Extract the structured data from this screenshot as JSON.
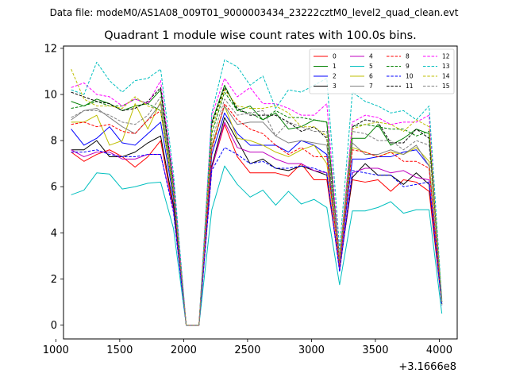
{
  "suptitle": "Data file: modeM0/AS1A08_009T01_9000003434_23222cztM0_level2_quad_clean.evt",
  "chart_data": {
    "type": "line",
    "title": "Quadrant 1 module wise count rates with 100.0s bins.",
    "offset_label": "+3.1666e8",
    "xlim": [
      1060,
      4140
    ],
    "ylim": [
      -0.6,
      12.1
    ],
    "xticks": [
      1000,
      1500,
      2000,
      2500,
      3000,
      3500,
      4000
    ],
    "yticks": [
      0,
      2,
      4,
      6,
      8,
      10,
      12
    ],
    "x": [
      1120,
      1220,
      1320,
      1420,
      1520,
      1620,
      1720,
      1820,
      1920,
      2020,
      2120,
      2220,
      2320,
      2420,
      2520,
      2620,
      2720,
      2820,
      2920,
      3020,
      3120,
      3220,
      3320,
      3420,
      3520,
      3620,
      3720,
      3820,
      3920,
      4020
    ],
    "legend_position": "upper right",
    "series": [
      {
        "name": "0",
        "color": "#ff0000",
        "dash": "solid",
        "values": [
          7.5,
          7.1,
          7.4,
          7.6,
          7.3,
          6.85,
          7.3,
          8.0,
          5.0,
          0.0,
          0.0,
          6.8,
          8.7,
          7.3,
          6.6,
          6.6,
          6.6,
          6.45,
          7.0,
          6.3,
          6.3,
          2.5,
          6.3,
          6.2,
          6.3,
          5.8,
          6.3,
          6.2,
          5.8,
          0.9
        ]
      },
      {
        "name": "1",
        "color": "#008000",
        "dash": "solid",
        "values": [
          9.7,
          9.5,
          9.8,
          9.6,
          9.3,
          9.5,
          9.6,
          10.2,
          6.0,
          0.0,
          0.0,
          8.8,
          10.4,
          9.3,
          9.5,
          8.9,
          9.2,
          8.5,
          8.6,
          8.9,
          8.8,
          2.9,
          8.1,
          8.1,
          8.7,
          7.8,
          8.1,
          8.5,
          8.3,
          1.0
        ]
      },
      {
        "name": "2",
        "color": "#0000ff",
        "dash": "solid",
        "values": [
          8.5,
          7.8,
          8.1,
          8.6,
          7.9,
          7.8,
          8.3,
          8.8,
          5.5,
          0.0,
          0.0,
          7.4,
          9.2,
          8.3,
          7.8,
          7.8,
          7.8,
          7.5,
          8.0,
          7.8,
          7.4,
          2.6,
          7.2,
          7.2,
          7.3,
          7.3,
          7.5,
          7.6,
          6.9,
          0.9
        ]
      },
      {
        "name": "3",
        "color": "#000000",
        "dash": "solid",
        "values": [
          7.6,
          7.6,
          8.0,
          7.3,
          7.3,
          7.5,
          7.9,
          8.2,
          5.2,
          0.0,
          0.0,
          6.9,
          9.0,
          8.0,
          7.0,
          7.2,
          6.8,
          6.7,
          6.9,
          6.7,
          6.5,
          2.4,
          6.4,
          7.0,
          6.5,
          6.5,
          6.1,
          6.6,
          6.1,
          0.9
        ]
      },
      {
        "name": "4",
        "color": "#bf00bf",
        "dash": "solid",
        "values": [
          7.6,
          7.3,
          7.5,
          7.5,
          7.2,
          7.2,
          7.4,
          7.4,
          5.0,
          0.0,
          0.0,
          6.8,
          8.8,
          7.7,
          7.5,
          7.5,
          7.2,
          7.0,
          7.0,
          6.7,
          6.6,
          2.4,
          6.6,
          6.8,
          6.8,
          6.6,
          6.7,
          6.4,
          6.3,
          0.9
        ]
      },
      {
        "name": "5",
        "color": "#00bfbf",
        "dash": "solid",
        "values": [
          5.65,
          5.85,
          6.6,
          6.55,
          5.9,
          6.0,
          6.15,
          6.2,
          4.2,
          0.0,
          0.0,
          5.0,
          6.9,
          6.1,
          5.55,
          5.85,
          5.2,
          5.8,
          5.25,
          5.45,
          5.1,
          1.75,
          4.95,
          4.95,
          5.1,
          5.35,
          4.85,
          5.0,
          5.0,
          0.5
        ]
      },
      {
        "name": "6",
        "color": "#bfbf00",
        "dash": "solid",
        "values": [
          8.8,
          8.8,
          9.1,
          7.8,
          8.0,
          9.6,
          8.5,
          9.7,
          5.8,
          0.0,
          0.0,
          7.8,
          9.5,
          8.1,
          8.0,
          7.8,
          7.5,
          7.3,
          7.6,
          7.8,
          7.0,
          2.7,
          7.7,
          7.5,
          7.3,
          7.5,
          7.4,
          7.7,
          7.1,
          0.9
        ]
      },
      {
        "name": "7",
        "color": "#808080",
        "dash": "solid",
        "values": [
          8.9,
          9.3,
          9.4,
          9.0,
          8.6,
          8.3,
          8.9,
          9.6,
          5.8,
          0.0,
          0.0,
          7.7,
          9.5,
          8.7,
          8.8,
          8.8,
          8.2,
          7.9,
          8.0,
          7.9,
          7.8,
          2.6,
          7.9,
          7.4,
          7.4,
          7.6,
          7.4,
          7.8,
          6.9,
          1.0
        ]
      },
      {
        "name": "8",
        "color": "#ff0000",
        "dash": "dashed",
        "values": [
          8.7,
          8.8,
          8.6,
          8.7,
          8.4,
          8.3,
          8.9,
          9.3,
          5.7,
          0.0,
          0.0,
          7.6,
          9.6,
          8.9,
          8.5,
          8.3,
          7.8,
          7.4,
          7.7,
          7.3,
          7.3,
          2.6,
          7.6,
          7.5,
          7.3,
          7.5,
          7.1,
          7.1,
          6.8,
          1.0
        ]
      },
      {
        "name": "9",
        "color": "#008000",
        "dash": "dashed",
        "values": [
          9.4,
          9.5,
          9.7,
          9.5,
          9.5,
          9.8,
          9.6,
          9.3,
          5.7,
          0.0,
          0.0,
          8.3,
          10.1,
          9.3,
          9.2,
          8.9,
          9.3,
          9.0,
          9.0,
          8.9,
          8.8,
          2.8,
          8.6,
          8.7,
          8.6,
          8.5,
          8.5,
          8.2,
          8.4,
          1.0
        ]
      },
      {
        "name": "10",
        "color": "#0000ff",
        "dash": "dashed",
        "values": [
          7.5,
          7.5,
          7.6,
          7.4,
          7.3,
          7.3,
          7.4,
          7.4,
          4.9,
          0.0,
          0.0,
          6.7,
          7.7,
          7.4,
          7.0,
          7.1,
          6.8,
          6.8,
          6.9,
          6.8,
          6.6,
          2.3,
          6.7,
          6.6,
          6.5,
          6.5,
          6.0,
          6.1,
          6.2,
          0.85
        ]
      },
      {
        "name": "11",
        "color": "#000000",
        "dash": "dashed",
        "values": [
          10.1,
          9.9,
          9.7,
          9.6,
          9.3,
          9.4,
          9.7,
          10.3,
          6.2,
          0.0,
          0.0,
          8.7,
          10.3,
          9.4,
          9.1,
          9.1,
          9.1,
          8.8,
          8.4,
          8.6,
          8.1,
          2.9,
          8.6,
          8.9,
          8.8,
          7.9,
          7.9,
          8.5,
          8.1,
          1.0
        ]
      },
      {
        "name": "12",
        "color": "#ff00ff",
        "dash": "dashed",
        "values": [
          10.3,
          10.5,
          10.0,
          9.9,
          9.5,
          9.8,
          9.6,
          10.6,
          6.3,
          0.0,
          0.0,
          9.1,
          10.7,
          9.9,
          10.3,
          9.6,
          9.6,
          9.4,
          9.1,
          9.1,
          9.6,
          2.9,
          8.8,
          9.1,
          9.0,
          8.7,
          8.8,
          8.8,
          9.1,
          1.0
        ]
      },
      {
        "name": "13",
        "color": "#00bfbf",
        "dash": "dashed",
        "values": [
          10.2,
          10.0,
          11.4,
          10.6,
          10.1,
          10.6,
          10.7,
          11.1,
          6.6,
          0.0,
          0.0,
          9.2,
          11.5,
          11.2,
          10.4,
          10.8,
          9.4,
          10.2,
          10.1,
          10.4,
          10.7,
          3.3,
          10.1,
          9.7,
          9.5,
          9.2,
          9.3,
          8.9,
          9.5,
          1.1
        ]
      },
      {
        "name": "14",
        "color": "#bfbf00",
        "dash": "dashed",
        "values": [
          11.1,
          9.8,
          9.5,
          9.5,
          9.4,
          9.9,
          9.5,
          9.3,
          5.8,
          0.0,
          0.0,
          8.5,
          10.2,
          9.5,
          9.4,
          9.4,
          9.5,
          9.2,
          8.6,
          8.6,
          8.2,
          2.9,
          8.5,
          8.7,
          8.8,
          8.7,
          8.4,
          8.9,
          8.6,
          1.0
        ]
      },
      {
        "name": "15",
        "color": "#808080",
        "dash": "dashed",
        "values": [
          9.0,
          9.3,
          9.3,
          9.1,
          8.8,
          8.7,
          9.1,
          9.9,
          6.0,
          0.0,
          0.0,
          8.0,
          9.8,
          9.1,
          9.2,
          9.3,
          8.2,
          8.8,
          8.6,
          8.4,
          8.4,
          2.7,
          8.4,
          8.3,
          8.0,
          8.0,
          7.6,
          8.0,
          7.8,
          1.0
        ]
      }
    ]
  }
}
